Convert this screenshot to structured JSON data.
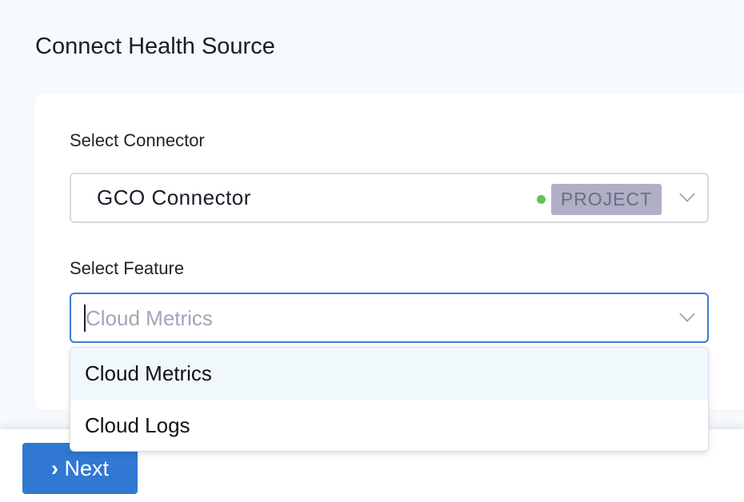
{
  "page": {
    "title": "Connect Health Source"
  },
  "connector": {
    "label": "Select Connector",
    "value": "GCO Connector",
    "status_color": "#5fc35a",
    "scope_badge": "PROJECT"
  },
  "feature": {
    "label": "Select Feature",
    "placeholder": "Cloud Metrics",
    "options": [
      {
        "label": "Cloud Metrics",
        "highlighted": true
      },
      {
        "label": "Cloud Logs",
        "highlighted": false
      }
    ]
  },
  "footer": {
    "next_label": "Next",
    "next_icon": "chevron-right-icon",
    "accent": "#3078d2"
  }
}
